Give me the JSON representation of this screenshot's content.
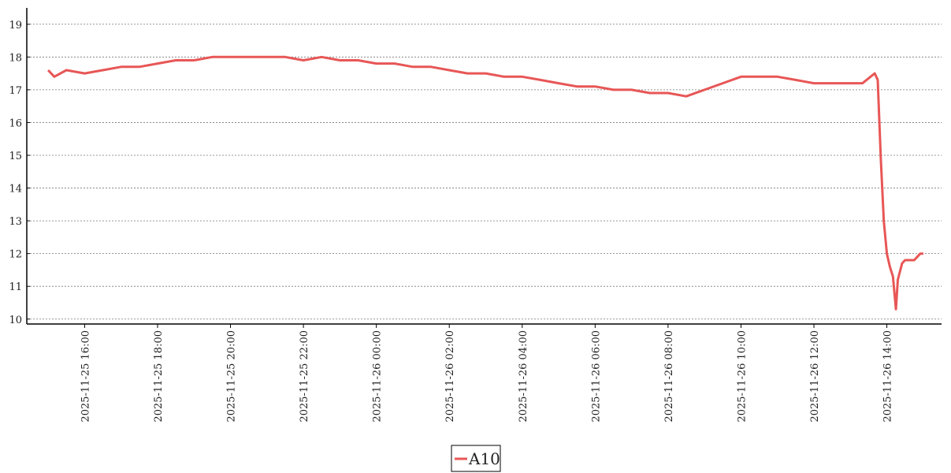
{
  "chart_data": {
    "type": "line",
    "x": [
      "2025-11-25 15:00",
      "2025-11-25 15:10",
      "2025-11-25 15:30",
      "2025-11-25 16:00",
      "2025-11-25 16:30",
      "2025-11-25 17:00",
      "2025-11-25 17:30",
      "2025-11-25 18:00",
      "2025-11-25 18:30",
      "2025-11-25 19:00",
      "2025-11-25 19:30",
      "2025-11-25 20:00",
      "2025-11-25 20:30",
      "2025-11-25 21:00",
      "2025-11-25 21:30",
      "2025-11-25 22:00",
      "2025-11-25 22:30",
      "2025-11-25 23:00",
      "2025-11-25 23:30",
      "2025-11-26 00:00",
      "2025-11-26 00:30",
      "2025-11-26 01:00",
      "2025-11-26 01:30",
      "2025-11-26 02:00",
      "2025-11-26 02:30",
      "2025-11-26 03:00",
      "2025-11-26 03:30",
      "2025-11-26 04:00",
      "2025-11-26 04:30",
      "2025-11-26 05:00",
      "2025-11-26 05:30",
      "2025-11-26 06:00",
      "2025-11-26 06:30",
      "2025-11-26 07:00",
      "2025-11-26 07:30",
      "2025-11-26 08:00",
      "2025-11-26 08:30",
      "2025-11-26 09:00",
      "2025-11-26 09:30",
      "2025-11-26 10:00",
      "2025-11-26 10:30",
      "2025-11-26 11:00",
      "2025-11-26 11:30",
      "2025-11-26 12:00",
      "2025-11-26 12:30",
      "2025-11-26 13:00",
      "2025-11-26 13:20",
      "2025-11-26 13:40",
      "2025-11-26 13:45",
      "2025-11-26 13:50",
      "2025-11-26 13:55",
      "2025-11-26 14:00",
      "2025-11-26 14:05",
      "2025-11-26 14:10",
      "2025-11-26 14:15",
      "2025-11-26 14:18",
      "2025-11-26 14:25",
      "2025-11-26 14:30",
      "2025-11-26 14:45",
      "2025-11-26 14:55",
      "2025-11-26 15:00"
    ],
    "series": [
      {
        "name": "A10",
        "color": "#e85656",
        "values": [
          17.6,
          17.4,
          17.6,
          17.5,
          17.6,
          17.7,
          17.7,
          17.8,
          17.9,
          17.9,
          18.0,
          18.0,
          18.0,
          18.0,
          18.0,
          17.9,
          18.0,
          17.9,
          17.9,
          17.8,
          17.8,
          17.7,
          17.7,
          17.6,
          17.5,
          17.5,
          17.4,
          17.4,
          17.3,
          17.2,
          17.1,
          17.1,
          17.0,
          17.0,
          16.9,
          16.9,
          16.8,
          17.0,
          17.2,
          17.4,
          17.4,
          17.4,
          17.3,
          17.2,
          17.2,
          17.2,
          17.2,
          17.5,
          17.3,
          14.9,
          13.0,
          12.0,
          11.6,
          11.3,
          10.3,
          11.2,
          11.7,
          11.8,
          11.8,
          12.0,
          12.0
        ]
      }
    ],
    "xlim": [
      "2025-11-25 14:30",
      "2025-11-26 15:30"
    ],
    "xticks": [
      "2025-11-25 16:00",
      "2025-11-25 18:00",
      "2025-11-25 20:00",
      "2025-11-25 22:00",
      "2025-11-26 00:00",
      "2025-11-26 02:00",
      "2025-11-26 04:00",
      "2025-11-26 06:00",
      "2025-11-26 08:00",
      "2025-11-26 10:00",
      "2025-11-26 12:00",
      "2025-11-26 14:00"
    ],
    "ylim": [
      9.85,
      19.5
    ],
    "yticks": [
      10,
      11,
      12,
      13,
      14,
      15,
      16,
      17,
      18,
      19
    ],
    "grid": true
  }
}
